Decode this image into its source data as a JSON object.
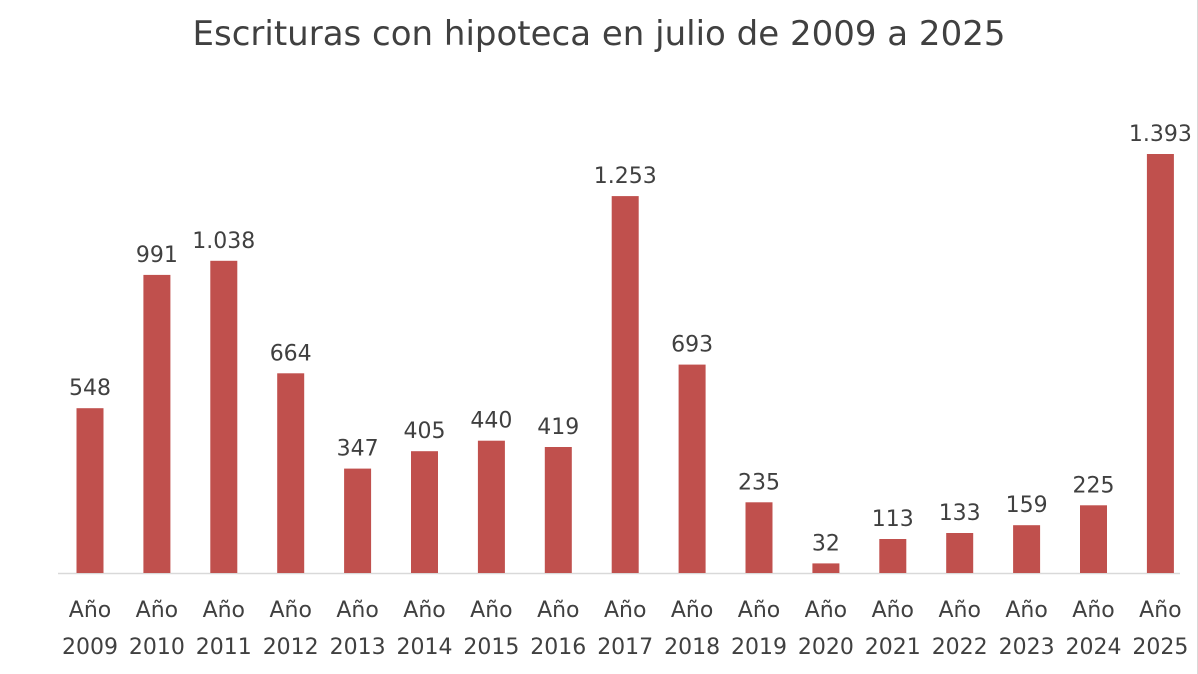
{
  "chart_data": {
    "type": "bar",
    "title": "Escrituras con hipoteca en julio de 2009 a 2025",
    "xlabel": "",
    "ylabel": "",
    "categories": [
      [
        "Año",
        "2009"
      ],
      [
        "Año",
        "2010"
      ],
      [
        "Año",
        "2011"
      ],
      [
        "Año",
        "2012"
      ],
      [
        "Año",
        "2013"
      ],
      [
        "Año",
        "2014"
      ],
      [
        "Año",
        "2015"
      ],
      [
        "Año",
        "2016"
      ],
      [
        "Año",
        "2017"
      ],
      [
        "Año",
        "2018"
      ],
      [
        "Año",
        "2019"
      ],
      [
        "Año",
        "2020"
      ],
      [
        "Año",
        "2021"
      ],
      [
        "Año",
        "2022"
      ],
      [
        "Año",
        "2023"
      ],
      [
        "Año",
        "2024"
      ],
      [
        "Año",
        "2025"
      ]
    ],
    "values": [
      548,
      991,
      1038,
      664,
      347,
      405,
      440,
      419,
      1253,
      693,
      235,
      32,
      113,
      133,
      159,
      225,
      1393
    ],
    "data_labels": [
      "548",
      "991",
      "1.038",
      "664",
      "347",
      "405",
      "440",
      "419",
      "1.253",
      "693",
      "235",
      "32",
      "113",
      "133",
      "159",
      "225",
      "1.393"
    ],
    "ylim": [
      0,
      1393
    ],
    "grid": false,
    "legend": "none",
    "bar_color": "#c0504d",
    "axis_color": "#d9d9d9"
  }
}
